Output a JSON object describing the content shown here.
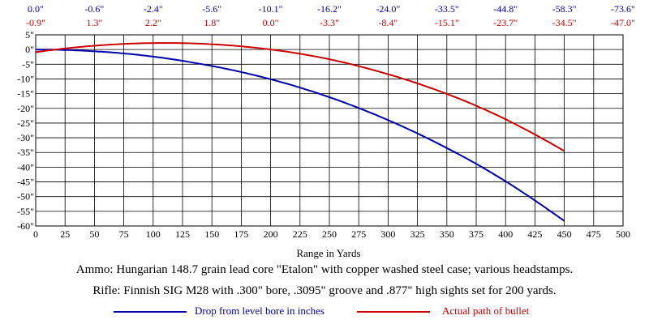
{
  "chart_data": {
    "type": "line",
    "xlabel": "Range in Yards",
    "ylabel": "",
    "xlim": [
      0,
      500
    ],
    "ylim": [
      -60,
      5
    ],
    "x_ticks": [
      0,
      25,
      50,
      75,
      100,
      125,
      150,
      175,
      200,
      225,
      250,
      275,
      300,
      325,
      350,
      375,
      400,
      425,
      450,
      475,
      500
    ],
    "y_ticks": [
      5,
      0,
      -5,
      -10,
      -15,
      -20,
      -25,
      -30,
      -35,
      -40,
      -45,
      -50,
      -55,
      -60
    ],
    "y_tick_labels": [
      "5\"",
      "0\"",
      "-5\"",
      "-10\"",
      "-15\"",
      "-20\"",
      "-25\"",
      "-30\"",
      "-35\"",
      "-40\"",
      "-45\"",
      "-50\"",
      "-55\"",
      "-60\""
    ],
    "grid": true,
    "top_labels": {
      "x": [
        0,
        50,
        100,
        150,
        200,
        250,
        300,
        350,
        400,
        450,
        500
      ],
      "drop": [
        "0.0\"",
        "-0.6\"",
        "-2.4\"",
        "-5.6\"",
        "-10.1\"",
        "-16.2\"",
        "-24.0\"",
        "-33.5\"",
        "-44.8\"",
        "-58.3\"",
        "-73.6\""
      ],
      "path": [
        "-0.9\"",
        "1.3\"",
        "2.2\"",
        "1.8\"",
        "0.0\"",
        "-3.3\"",
        "-8.4\"",
        "-15.1\"",
        "-23.7\"",
        "-34.5\"",
        "-47.0\""
      ]
    },
    "series": [
      {
        "name": "Drop from level bore in inches",
        "color": "#0000aa",
        "x": [
          0,
          50,
          100,
          150,
          200,
          250,
          300,
          350,
          400,
          450,
          500
        ],
        "values": [
          0.0,
          -0.6,
          -2.4,
          -5.6,
          -10.1,
          -16.2,
          -24.0,
          -33.5,
          -44.8,
          -58.3,
          -73.6
        ]
      },
      {
        "name": "Actual path of bullet",
        "color": "#cc0000",
        "x": [
          0,
          50,
          100,
          150,
          200,
          250,
          300,
          350,
          400,
          450,
          500
        ],
        "values": [
          -0.9,
          1.3,
          2.2,
          1.8,
          0.0,
          -3.3,
          -8.4,
          -15.1,
          -23.7,
          -34.5,
          -47.0
        ]
      }
    ]
  },
  "captions": {
    "ammo": "Ammo:  Hungarian 148.7 grain lead core \"Etalon\" with copper washed steel case; various headstamps.",
    "rifle": "Rifle:  Finnish SIG M28 with .300\" bore, .3095\" groove and .877\" high sights set for 200 yards."
  }
}
